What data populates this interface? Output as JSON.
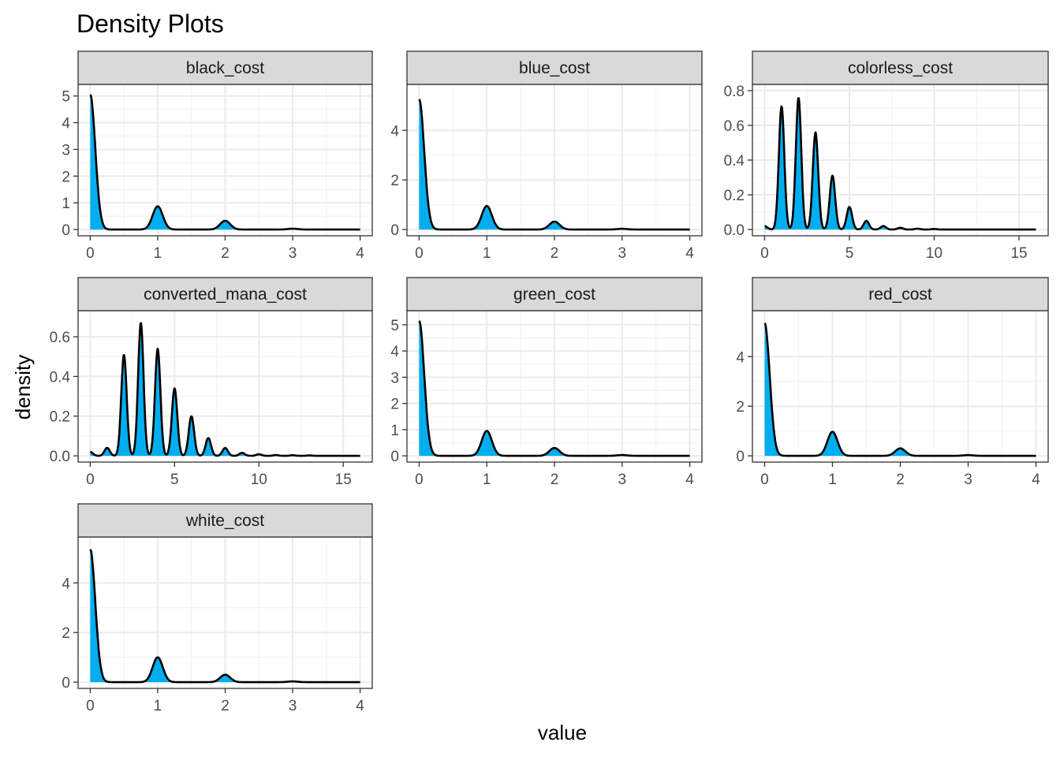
{
  "chart_data": {
    "type": "area",
    "title": "Density Plots",
    "xlabel": "value",
    "ylabel": "density",
    "fill_color": "#00AEEF",
    "line_color": "#000000",
    "strip_fill": "#D9D9D9",
    "grid": true,
    "panels": [
      {
        "name": "black_cost",
        "xlim": [
          0,
          4
        ],
        "ylim": [
          0,
          5.2
        ],
        "x_ticks": [
          0,
          1,
          2,
          3,
          4
        ],
        "y_ticks": [
          0,
          1,
          2,
          3,
          4,
          5
        ],
        "y_tick_labels": [
          "0",
          "1",
          "2",
          "3",
          "4",
          "5"
        ],
        "sigma": 0.075,
        "peaks": [
          [
            0,
            5.05
          ],
          [
            1,
            0.87
          ],
          [
            2,
            0.33
          ],
          [
            3,
            0.03
          ]
        ]
      },
      {
        "name": "blue_cost",
        "xlim": [
          0,
          4
        ],
        "ylim": [
          0,
          5.6
        ],
        "x_ticks": [
          0,
          1,
          2,
          3,
          4
        ],
        "y_ticks": [
          0,
          2,
          4
        ],
        "y_tick_labels": [
          "0",
          "2",
          "4"
        ],
        "sigma": 0.075,
        "peaks": [
          [
            0,
            5.25
          ],
          [
            1,
            0.95
          ],
          [
            2,
            0.32
          ],
          [
            3,
            0.03
          ]
        ]
      },
      {
        "name": "colorless_cost",
        "xlim": [
          0,
          16
        ],
        "ylim": [
          0,
          0.8
        ],
        "x_ticks": [
          0,
          5,
          10,
          15
        ],
        "y_ticks": [
          0,
          0.2,
          0.4,
          0.6,
          0.8
        ],
        "y_tick_labels": [
          "0.0",
          "0.2",
          "0.4",
          "0.6",
          "0.8"
        ],
        "sigma": 0.16,
        "peaks": [
          [
            0,
            0.02
          ],
          [
            1,
            0.71
          ],
          [
            2,
            0.76
          ],
          [
            3,
            0.56
          ],
          [
            4,
            0.31
          ],
          [
            5,
            0.13
          ],
          [
            6,
            0.05
          ],
          [
            7,
            0.02
          ],
          [
            8,
            0.01
          ],
          [
            9,
            0.005
          ],
          [
            10,
            0.003
          ]
        ]
      },
      {
        "name": "converted_mana_cost",
        "xlim": [
          0,
          16
        ],
        "ylim": [
          0,
          0.7
        ],
        "x_ticks": [
          0,
          5,
          10,
          15
        ],
        "y_ticks": [
          0,
          0.2,
          0.4,
          0.6
        ],
        "y_tick_labels": [
          "0.0",
          "0.2",
          "0.4",
          "0.6"
        ],
        "sigma": 0.16,
        "peaks": [
          [
            0,
            0.02
          ],
          [
            1,
            0.04
          ],
          [
            2,
            0.51
          ],
          [
            3,
            0.67
          ],
          [
            4,
            0.54
          ],
          [
            5,
            0.34
          ],
          [
            6,
            0.2
          ],
          [
            7,
            0.09
          ],
          [
            8,
            0.04
          ],
          [
            9,
            0.015
          ],
          [
            10,
            0.008
          ],
          [
            11,
            0.004
          ],
          [
            12,
            0.003
          ],
          [
            13,
            0.002
          ]
        ]
      },
      {
        "name": "green_cost",
        "xlim": [
          0,
          4
        ],
        "ylim": [
          0,
          5.3
        ],
        "x_ticks": [
          0,
          1,
          2,
          3,
          4
        ],
        "y_ticks": [
          0,
          1,
          2,
          3,
          4,
          5
        ],
        "y_tick_labels": [
          "0",
          "1",
          "2",
          "3",
          "4",
          "5"
        ],
        "sigma": 0.075,
        "peaks": [
          [
            0,
            5.15
          ],
          [
            1,
            0.95
          ],
          [
            2,
            0.3
          ],
          [
            3,
            0.03
          ]
        ]
      },
      {
        "name": "red_cost",
        "xlim": [
          0,
          4
        ],
        "ylim": [
          0,
          5.6
        ],
        "x_ticks": [
          0,
          1,
          2,
          3,
          4
        ],
        "y_ticks": [
          0,
          2,
          4
        ],
        "y_tick_labels": [
          "0",
          "2",
          "4"
        ],
        "sigma": 0.075,
        "peaks": [
          [
            0,
            5.35
          ],
          [
            1,
            0.97
          ],
          [
            2,
            0.3
          ],
          [
            3,
            0.03
          ]
        ]
      },
      {
        "name": "white_cost",
        "xlim": [
          0,
          4
        ],
        "ylim": [
          0,
          5.6
        ],
        "x_ticks": [
          0,
          1,
          2,
          3,
          4
        ],
        "y_ticks": [
          0,
          2,
          4
        ],
        "y_tick_labels": [
          "0",
          "2",
          "4"
        ],
        "sigma": 0.075,
        "peaks": [
          [
            0,
            5.35
          ],
          [
            1,
            1.0
          ],
          [
            2,
            0.3
          ],
          [
            3,
            0.03
          ]
        ]
      }
    ]
  }
}
